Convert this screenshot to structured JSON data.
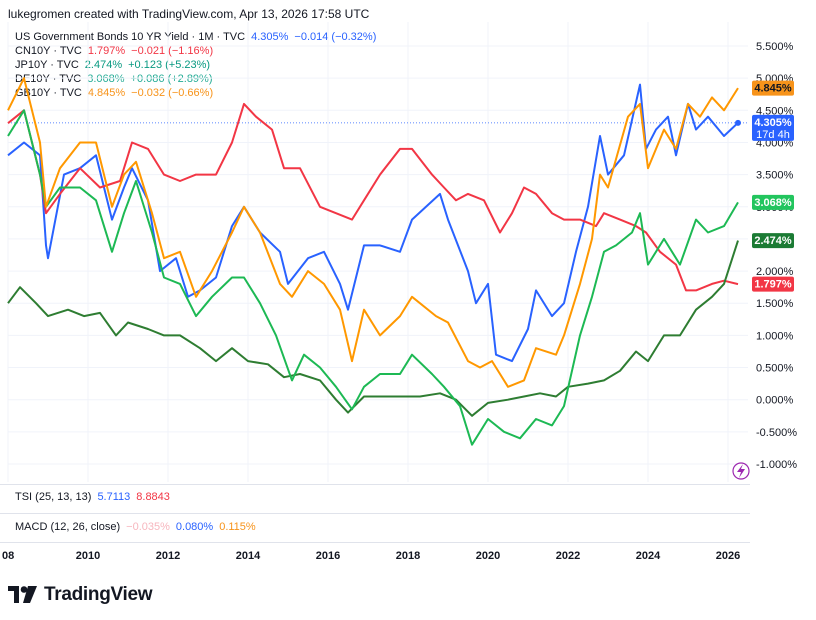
{
  "header": {
    "attribution": "lukegromen created with TradingView.com, Apr 13, 2026 17:58 UTC"
  },
  "legend": [
    {
      "symbol": "US Government Bonds 10 YR Yield · 1M · TVC",
      "value": "4.305%",
      "change": "−0.014 (−0.32%)",
      "color": "#2962ff"
    },
    {
      "symbol": "CN10Y · TVC",
      "value": "1.797%",
      "change": "−0.021 (−1.16%)",
      "color": "#f23645"
    },
    {
      "symbol": "JP10Y · TVC",
      "value": "2.474%",
      "change": "+0.123 (+5.23%)",
      "color": "#089981"
    },
    {
      "symbol": "DE10Y · TVC",
      "value": "3.068%",
      "change": "+0.086 (+2.89%)",
      "color": "#22ab94"
    },
    {
      "symbol": "GB10Y · TVC",
      "value": "4.845%",
      "change": "−0.032 (−0.66%)",
      "color": "#f7931a"
    }
  ],
  "chart_data": {
    "type": "line",
    "y_unit": "%",
    "ylim": [
      -1.2,
      5.8
    ],
    "xlim": [
      2008.0,
      2026.5
    ],
    "y_ticks": [
      "5.500%",
      "5.000%",
      "4.500%",
      "4.000%",
      "3.500%",
      "3.000%",
      "2.500%",
      "2.000%",
      "1.500%",
      "1.000%",
      "0.500%",
      "0.000%",
      "-0.500%",
      "-1.000%"
    ],
    "y_tick_values": [
      5.5,
      5.0,
      4.5,
      4.0,
      3.5,
      3.0,
      2.5,
      2.0,
      1.5,
      1.0,
      0.5,
      0.0,
      -0.5,
      -1.0
    ],
    "x_ticks": [
      "08",
      "2010",
      "2012",
      "2014",
      "2016",
      "2018",
      "2020",
      "2022",
      "2024",
      "2026"
    ],
    "x_tick_values": [
      2008,
      2010,
      2012,
      2014,
      2016,
      2018,
      2020,
      2022,
      2024,
      2026
    ],
    "crosshair_value": 4.305,
    "series": [
      {
        "key": "US10Y",
        "color": "#2962ff",
        "points": [
          [
            2008.0,
            3.8
          ],
          [
            2008.4,
            4.0
          ],
          [
            2008.8,
            3.8
          ],
          [
            2008.95,
            2.4
          ],
          [
            2009.0,
            2.2
          ],
          [
            2009.4,
            3.5
          ],
          [
            2009.8,
            3.6
          ],
          [
            2010.2,
            3.8
          ],
          [
            2010.6,
            2.8
          ],
          [
            2010.9,
            3.3
          ],
          [
            2011.1,
            3.6
          ],
          [
            2011.5,
            3.1
          ],
          [
            2011.8,
            2.0
          ],
          [
            2012.2,
            2.2
          ],
          [
            2012.5,
            1.6
          ],
          [
            2012.8,
            1.7
          ],
          [
            2013.2,
            1.9
          ],
          [
            2013.6,
            2.7
          ],
          [
            2013.9,
            3.0
          ],
          [
            2014.3,
            2.6
          ],
          [
            2014.8,
            2.3
          ],
          [
            2015.0,
            1.8
          ],
          [
            2015.5,
            2.2
          ],
          [
            2015.9,
            2.3
          ],
          [
            2016.3,
            1.8
          ],
          [
            2016.5,
            1.4
          ],
          [
            2016.9,
            2.4
          ],
          [
            2017.3,
            2.4
          ],
          [
            2017.8,
            2.3
          ],
          [
            2018.1,
            2.8
          ],
          [
            2018.8,
            3.2
          ],
          [
            2019.0,
            2.8
          ],
          [
            2019.5,
            2.0
          ],
          [
            2019.7,
            1.5
          ],
          [
            2020.0,
            1.8
          ],
          [
            2020.2,
            0.7
          ],
          [
            2020.6,
            0.6
          ],
          [
            2021.0,
            1.1
          ],
          [
            2021.2,
            1.7
          ],
          [
            2021.6,
            1.3
          ],
          [
            2021.9,
            1.5
          ],
          [
            2022.2,
            2.3
          ],
          [
            2022.5,
            3.0
          ],
          [
            2022.8,
            4.1
          ],
          [
            2023.0,
            3.5
          ],
          [
            2023.4,
            3.8
          ],
          [
            2023.8,
            4.9
          ],
          [
            2023.95,
            3.9
          ],
          [
            2024.2,
            4.2
          ],
          [
            2024.5,
            4.4
          ],
          [
            2024.7,
            3.8
          ],
          [
            2025.0,
            4.6
          ],
          [
            2025.2,
            4.2
          ],
          [
            2025.5,
            4.4
          ],
          [
            2025.9,
            4.1
          ],
          [
            2026.25,
            4.305
          ]
        ]
      },
      {
        "key": "CN10Y",
        "color": "#f23645",
        "points": [
          [
            2008.0,
            4.3
          ],
          [
            2008.4,
            4.5
          ],
          [
            2008.8,
            3.5
          ],
          [
            2008.95,
            2.9
          ],
          [
            2009.3,
            3.2
          ],
          [
            2009.8,
            3.6
          ],
          [
            2010.3,
            3.3
          ],
          [
            2010.8,
            3.4
          ],
          [
            2011.1,
            4.0
          ],
          [
            2011.5,
            3.9
          ],
          [
            2011.9,
            3.5
          ],
          [
            2012.3,
            3.4
          ],
          [
            2012.7,
            3.5
          ],
          [
            2013.2,
            3.5
          ],
          [
            2013.6,
            4.0
          ],
          [
            2013.9,
            4.6
          ],
          [
            2014.2,
            4.4
          ],
          [
            2014.6,
            4.2
          ],
          [
            2014.9,
            3.6
          ],
          [
            2015.3,
            3.6
          ],
          [
            2015.8,
            3.0
          ],
          [
            2016.2,
            2.9
          ],
          [
            2016.6,
            2.8
          ],
          [
            2016.9,
            3.1
          ],
          [
            2017.3,
            3.5
          ],
          [
            2017.8,
            3.9
          ],
          [
            2018.1,
            3.9
          ],
          [
            2018.6,
            3.5
          ],
          [
            2018.9,
            3.3
          ],
          [
            2019.2,
            3.1
          ],
          [
            2019.5,
            3.2
          ],
          [
            2019.9,
            3.1
          ],
          [
            2020.3,
            2.6
          ],
          [
            2020.6,
            2.9
          ],
          [
            2020.9,
            3.3
          ],
          [
            2021.2,
            3.2
          ],
          [
            2021.6,
            2.9
          ],
          [
            2021.9,
            2.8
          ],
          [
            2022.3,
            2.8
          ],
          [
            2022.7,
            2.7
          ],
          [
            2022.9,
            2.9
          ],
          [
            2023.3,
            2.8
          ],
          [
            2023.7,
            2.7
          ],
          [
            2023.95,
            2.6
          ],
          [
            2024.3,
            2.3
          ],
          [
            2024.7,
            2.1
          ],
          [
            2024.95,
            1.7
          ],
          [
            2025.2,
            1.7
          ],
          [
            2025.6,
            1.8
          ],
          [
            2025.9,
            1.85
          ],
          [
            2026.25,
            1.797
          ]
        ]
      },
      {
        "key": "JP10Y",
        "color": "#2e7d32",
        "points": [
          [
            2008.0,
            1.5
          ],
          [
            2008.3,
            1.75
          ],
          [
            2008.7,
            1.5
          ],
          [
            2009.0,
            1.3
          ],
          [
            2009.5,
            1.4
          ],
          [
            2009.9,
            1.3
          ],
          [
            2010.3,
            1.35
          ],
          [
            2010.7,
            1.0
          ],
          [
            2011.0,
            1.2
          ],
          [
            2011.5,
            1.1
          ],
          [
            2011.9,
            1.0
          ],
          [
            2012.3,
            1.0
          ],
          [
            2012.8,
            0.8
          ],
          [
            2013.2,
            0.6
          ],
          [
            2013.6,
            0.8
          ],
          [
            2014.0,
            0.6
          ],
          [
            2014.5,
            0.55
          ],
          [
            2014.9,
            0.35
          ],
          [
            2015.3,
            0.4
          ],
          [
            2015.8,
            0.3
          ],
          [
            2016.2,
            0.0
          ],
          [
            2016.5,
            -0.2
          ],
          [
            2016.9,
            0.05
          ],
          [
            2017.4,
            0.05
          ],
          [
            2017.9,
            0.05
          ],
          [
            2018.3,
            0.05
          ],
          [
            2018.8,
            0.1
          ],
          [
            2019.2,
            0.0
          ],
          [
            2019.6,
            -0.25
          ],
          [
            2020.0,
            -0.05
          ],
          [
            2020.5,
            0.0
          ],
          [
            2020.9,
            0.05
          ],
          [
            2021.3,
            0.1
          ],
          [
            2021.7,
            0.05
          ],
          [
            2022.0,
            0.2
          ],
          [
            2022.5,
            0.25
          ],
          [
            2022.9,
            0.3
          ],
          [
            2023.3,
            0.45
          ],
          [
            2023.7,
            0.75
          ],
          [
            2024.0,
            0.6
          ],
          [
            2024.4,
            1.0
          ],
          [
            2024.8,
            1.0
          ],
          [
            2025.2,
            1.4
          ],
          [
            2025.6,
            1.6
          ],
          [
            2025.9,
            1.8
          ],
          [
            2026.25,
            2.474
          ]
        ]
      },
      {
        "key": "DE10Y",
        "color": "#1db954",
        "points": [
          [
            2008.0,
            4.1
          ],
          [
            2008.4,
            4.5
          ],
          [
            2008.8,
            3.5
          ],
          [
            2008.95,
            3.0
          ],
          [
            2009.3,
            3.3
          ],
          [
            2009.8,
            3.3
          ],
          [
            2010.2,
            3.1
          ],
          [
            2010.6,
            2.3
          ],
          [
            2010.9,
            2.9
          ],
          [
            2011.2,
            3.4
          ],
          [
            2011.6,
            2.6
          ],
          [
            2011.9,
            1.9
          ],
          [
            2012.3,
            1.8
          ],
          [
            2012.7,
            1.3
          ],
          [
            2013.1,
            1.6
          ],
          [
            2013.6,
            1.9
          ],
          [
            2013.9,
            1.9
          ],
          [
            2014.3,
            1.5
          ],
          [
            2014.7,
            1.0
          ],
          [
            2015.1,
            0.3
          ],
          [
            2015.4,
            0.7
          ],
          [
            2015.8,
            0.5
          ],
          [
            2016.2,
            0.2
          ],
          [
            2016.6,
            -0.15
          ],
          [
            2016.9,
            0.2
          ],
          [
            2017.3,
            0.4
          ],
          [
            2017.8,
            0.4
          ],
          [
            2018.1,
            0.7
          ],
          [
            2018.6,
            0.4
          ],
          [
            2018.9,
            0.2
          ],
          [
            2019.3,
            -0.1
          ],
          [
            2019.6,
            -0.7
          ],
          [
            2020.0,
            -0.3
          ],
          [
            2020.4,
            -0.5
          ],
          [
            2020.8,
            -0.6
          ],
          [
            2021.2,
            -0.3
          ],
          [
            2021.6,
            -0.4
          ],
          [
            2021.9,
            -0.1
          ],
          [
            2022.3,
            1.0
          ],
          [
            2022.6,
            1.6
          ],
          [
            2022.9,
            2.3
          ],
          [
            2023.2,
            2.4
          ],
          [
            2023.6,
            2.6
          ],
          [
            2023.8,
            2.9
          ],
          [
            2024.0,
            2.1
          ],
          [
            2024.4,
            2.5
          ],
          [
            2024.8,
            2.1
          ],
          [
            2025.2,
            2.8
          ],
          [
            2025.5,
            2.6
          ],
          [
            2025.9,
            2.7
          ],
          [
            2026.25,
            3.068
          ]
        ]
      },
      {
        "key": "GB10Y",
        "color": "#ff9800",
        "points": [
          [
            2008.0,
            4.5
          ],
          [
            2008.4,
            5.0
          ],
          [
            2008.8,
            4.0
          ],
          [
            2008.95,
            3.0
          ],
          [
            2009.3,
            3.6
          ],
          [
            2009.8,
            4.0
          ],
          [
            2010.2,
            4.0
          ],
          [
            2010.6,
            3.0
          ],
          [
            2010.9,
            3.5
          ],
          [
            2011.2,
            3.7
          ],
          [
            2011.6,
            2.9
          ],
          [
            2011.9,
            2.2
          ],
          [
            2012.3,
            2.3
          ],
          [
            2012.7,
            1.6
          ],
          [
            2013.1,
            2.0
          ],
          [
            2013.6,
            2.6
          ],
          [
            2013.9,
            3.0
          ],
          [
            2014.3,
            2.6
          ],
          [
            2014.8,
            1.8
          ],
          [
            2015.1,
            1.6
          ],
          [
            2015.5,
            2.0
          ],
          [
            2015.9,
            1.8
          ],
          [
            2016.3,
            1.4
          ],
          [
            2016.6,
            0.6
          ],
          [
            2016.9,
            1.4
          ],
          [
            2017.3,
            1.0
          ],
          [
            2017.8,
            1.3
          ],
          [
            2018.1,
            1.6
          ],
          [
            2018.7,
            1.3
          ],
          [
            2019.0,
            1.2
          ],
          [
            2019.5,
            0.6
          ],
          [
            2019.8,
            0.5
          ],
          [
            2020.1,
            0.6
          ],
          [
            2020.5,
            0.2
          ],
          [
            2020.9,
            0.3
          ],
          [
            2021.2,
            0.8
          ],
          [
            2021.7,
            0.7
          ],
          [
            2021.9,
            1.0
          ],
          [
            2022.3,
            1.8
          ],
          [
            2022.6,
            2.5
          ],
          [
            2022.8,
            3.5
          ],
          [
            2023.0,
            3.3
          ],
          [
            2023.5,
            4.4
          ],
          [
            2023.8,
            4.6
          ],
          [
            2024.0,
            3.6
          ],
          [
            2024.4,
            4.2
          ],
          [
            2024.7,
            3.9
          ],
          [
            2025.0,
            4.6
          ],
          [
            2025.3,
            4.4
          ],
          [
            2025.6,
            4.7
          ],
          [
            2025.9,
            4.5
          ],
          [
            2026.25,
            4.845
          ]
        ]
      }
    ],
    "price_labels": [
      {
        "text": "4.845%",
        "value": 4.845,
        "color": "#f7931a",
        "text_color": "#131722"
      },
      {
        "text": "4.305%",
        "value": 4.305,
        "color": "#2962ff",
        "text_color": "#ffffff",
        "sub": "17d 4h"
      },
      {
        "text": "3.068%",
        "value": 3.068,
        "color": "#22c55e",
        "text_color": "#ffffff"
      },
      {
        "text": "2.474%",
        "value": 2.474,
        "color": "#1b7b34",
        "text_color": "#ffffff"
      },
      {
        "text": "1.797%",
        "value": 1.797,
        "color": "#f23645",
        "text_color": "#ffffff"
      }
    ]
  },
  "indicators": {
    "tsi": {
      "label": "TSI (25, 13, 13)",
      "v1": "5.7113",
      "v1_color": "#2962ff",
      "v2": "8.8843",
      "v2_color": "#f23645"
    },
    "macd": {
      "label": "MACD (12, 26, close)",
      "v1": "−0.035%",
      "v1_color": "#f7b6be",
      "v2": "0.080%",
      "v2_color": "#2962ff",
      "v3": "0.115%",
      "v3_color": "#f7931a"
    }
  },
  "branding": {
    "logo_text": "TradingView"
  }
}
